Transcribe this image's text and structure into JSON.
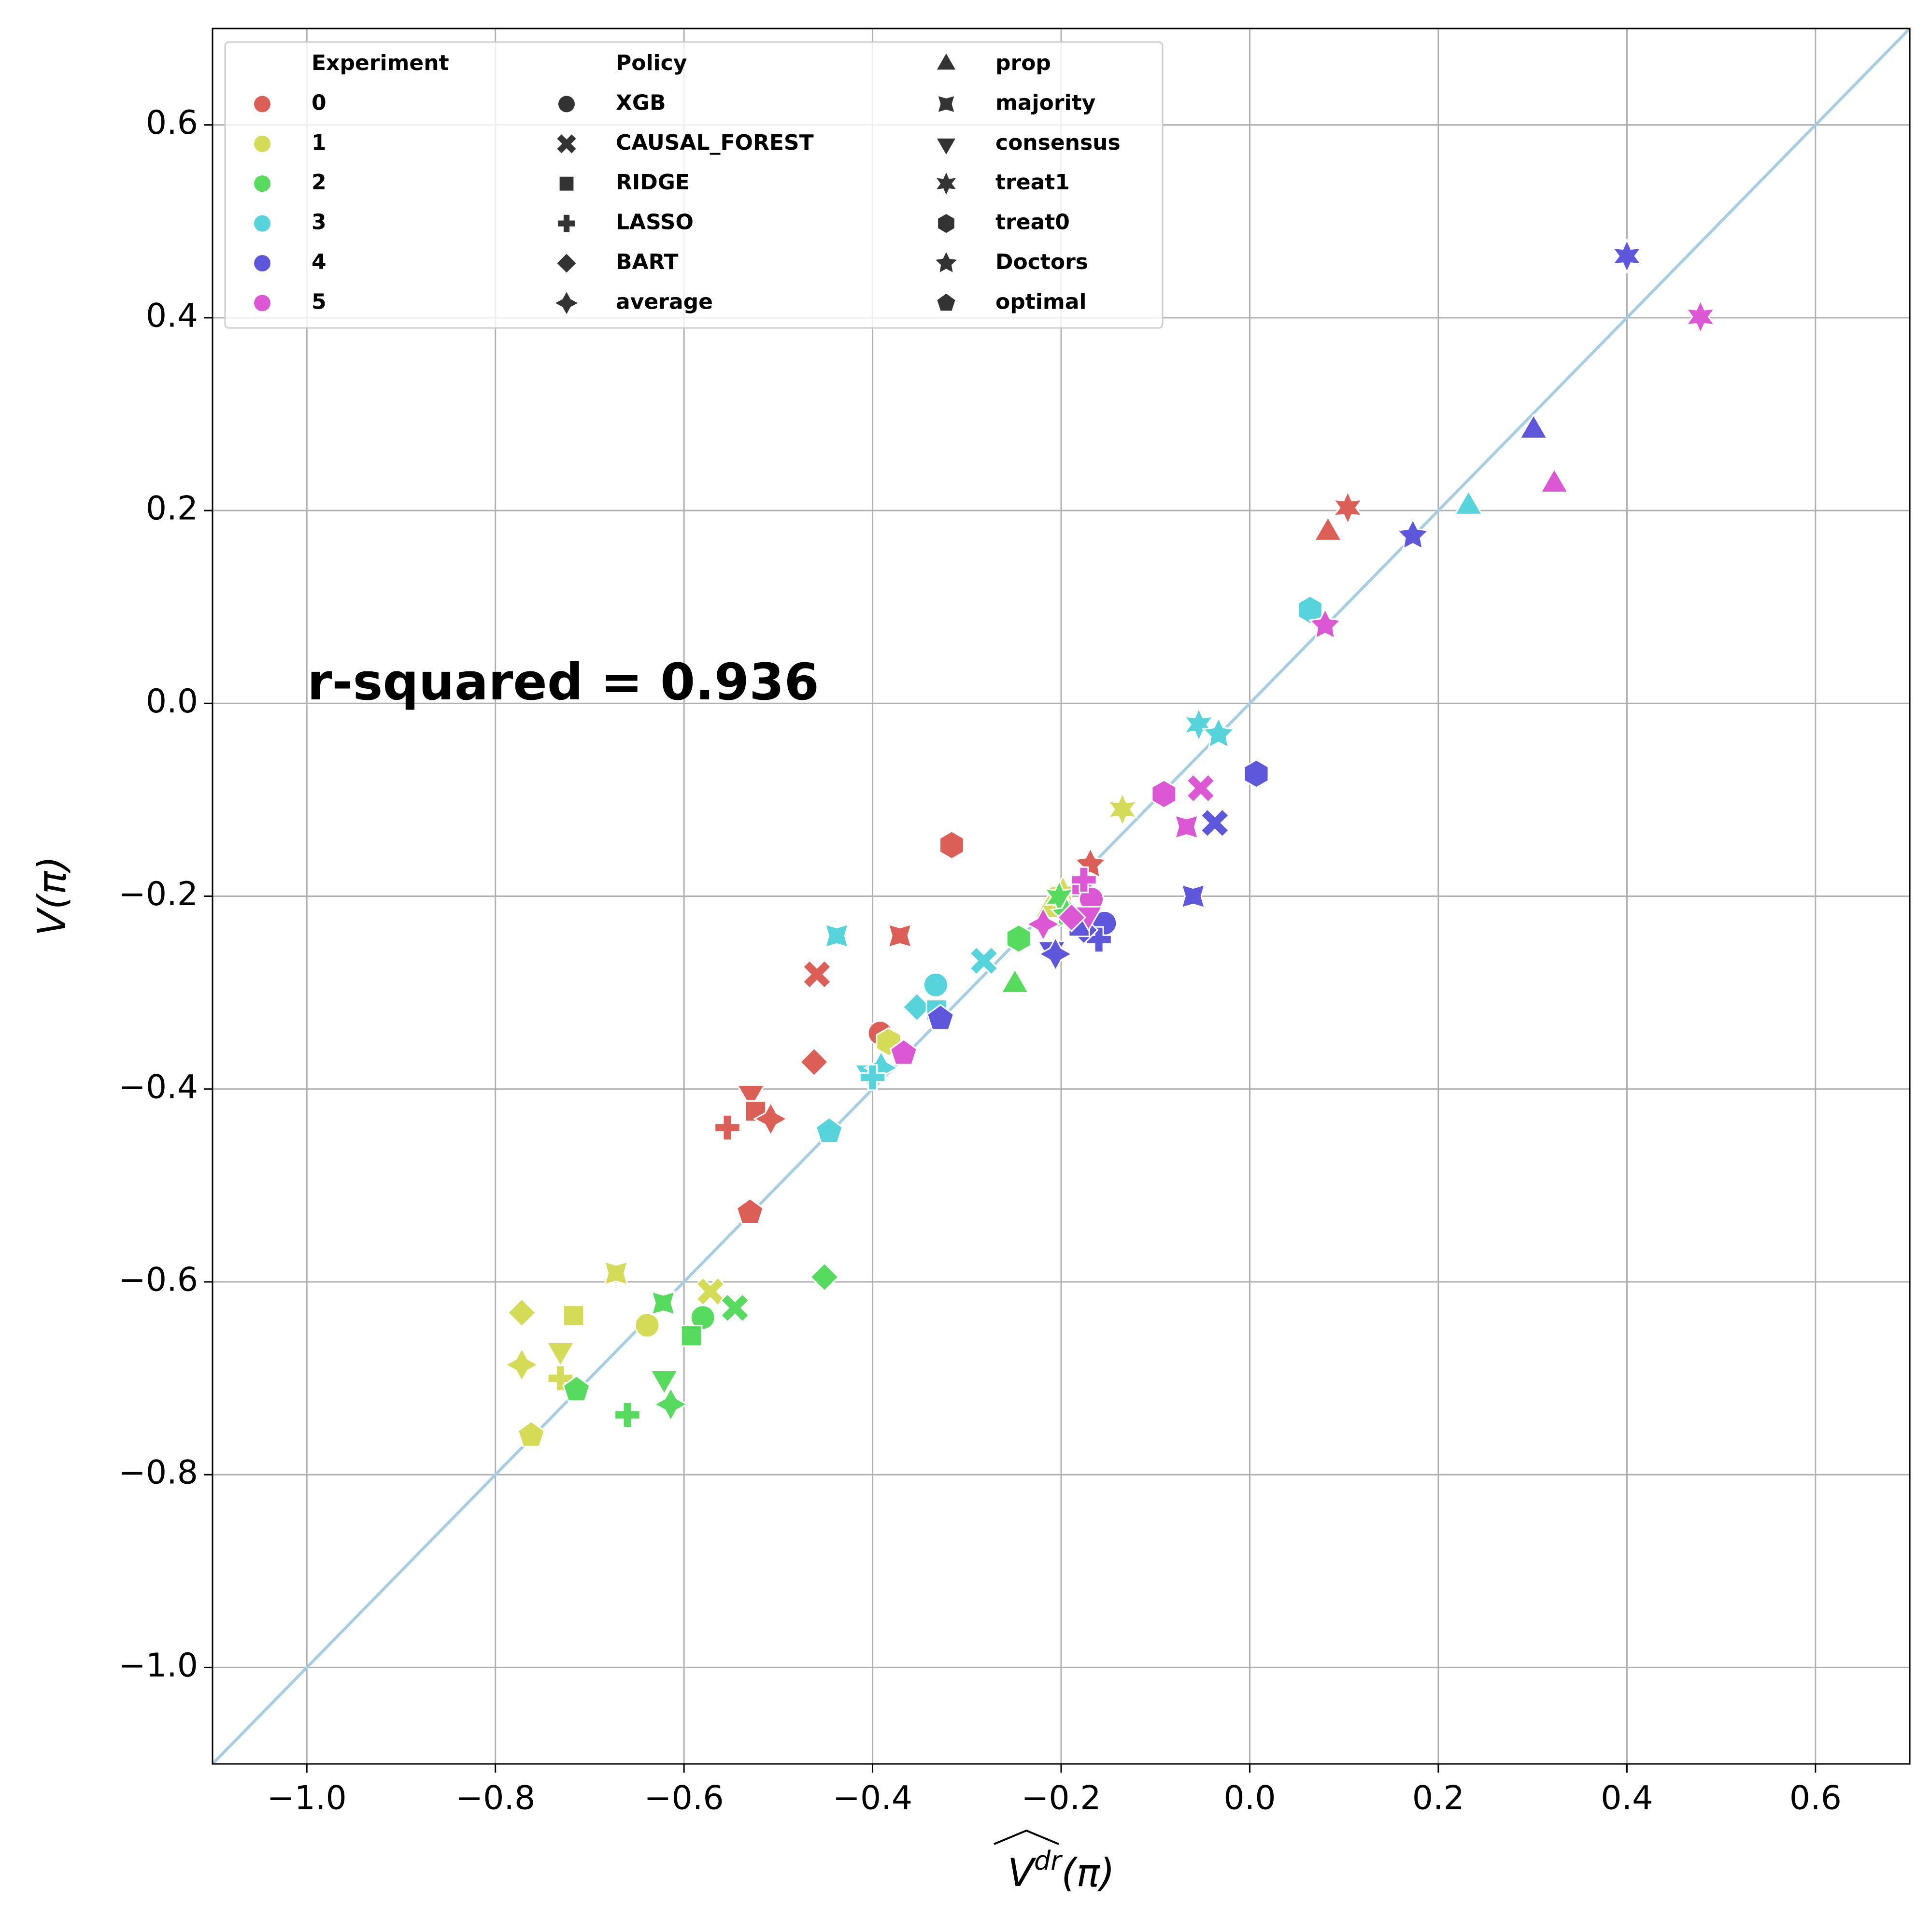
{
  "chart_data": {
    "type": "scatter",
    "xlabel": {
      "base": "V",
      "sup": "dr",
      "arg": "(π)"
    },
    "ylabel": "V(π)",
    "annotation": "r-squared = 0.936",
    "xlim": [
      -1.1,
      0.7
    ],
    "ylim": [
      -1.1,
      0.7
    ],
    "xticks": [
      {
        "value": -1.0,
        "label": "−1.0"
      },
      {
        "value": -0.8,
        "label": "−0.8"
      },
      {
        "value": -0.6,
        "label": "−0.6"
      },
      {
        "value": -0.4,
        "label": "−0.4"
      },
      {
        "value": -0.2,
        "label": "−0.2"
      },
      {
        "value": 0.0,
        "label": "0.0"
      },
      0.2,
      0.4,
      0.6
    ],
    "yticks": [
      {
        "value": -1.0,
        "label": "−1.0"
      },
      {
        "value": -0.8,
        "label": "−0.8"
      },
      {
        "value": -0.6,
        "label": "−0.6"
      },
      {
        "value": -0.4,
        "label": "−0.4"
      },
      {
        "value": -0.2,
        "label": "−0.2"
      },
      {
        "value": 0.0,
        "label": "0.0"
      },
      0.2,
      0.4,
      0.6
    ],
    "grid": true,
    "legend": "upper left",
    "diagonal_color": "#a6cee3",
    "hue_title": "Experiment",
    "style_title": "Policy",
    "policies": [
      {
        "name": "XGB",
        "marker": "o"
      },
      {
        "name": "CAUSAL_FOREST",
        "marker": "X"
      },
      {
        "name": "RIDGE",
        "marker": [
          4,
          0,
          45
        ]
      },
      {
        "name": "LASSO",
        "marker": "P"
      },
      {
        "name": "BART",
        "marker": [
          4,
          0,
          0
        ]
      },
      {
        "name": "average",
        "marker": [
          4,
          1,
          0
        ]
      },
      {
        "name": "prop",
        "marker": [
          3,
          0,
          0
        ]
      },
      {
        "name": "majority",
        "marker": [
          4,
          1,
          45
        ]
      },
      {
        "name": "consensus",
        "marker": [
          3,
          0,
          180
        ]
      },
      {
        "name": "treat1",
        "marker": [
          6,
          1,
          0
        ]
      },
      {
        "name": "treat0",
        "marker": [
          6,
          0,
          0
        ]
      },
      {
        "name": "Doctors",
        "marker": [
          5,
          1,
          0
        ]
      },
      {
        "name": "optimal",
        "marker": [
          5,
          0,
          0
        ]
      }
    ],
    "series": [
      {
        "name": "0",
        "color": "#db5f57",
        "x": [
          0.083,
          0.104,
          -0.316,
          -0.459,
          -0.371,
          -0.169,
          -0.392,
          -0.462,
          -0.529,
          -0.524,
          -0.508,
          -0.554,
          -0.53
        ],
        "y": [
          0.177,
          0.203,
          -0.147,
          -0.281,
          -0.241,
          -0.167,
          -0.342,
          -0.372,
          -0.404,
          -0.423,
          -0.431,
          -0.44,
          -0.528
        ],
        "policy": [
          "prop",
          "treat1",
          "treat0",
          "CAUSAL_FOREST",
          "majority",
          "Doctors",
          "XGB",
          "BART",
          "consensus",
          "RIDGE",
          "average",
          "LASSO",
          "optimal"
        ]
      },
      {
        "name": "1",
        "color": "#d3db57",
        "x": [
          -0.772,
          -0.717,
          -0.731,
          -0.772,
          -0.731,
          -0.762,
          -0.672,
          -0.639,
          -0.572,
          -0.135,
          -0.383,
          -0.213,
          -0.198
        ],
        "y": [
          -0.632,
          -0.635,
          -0.671,
          -0.686,
          -0.7,
          -0.759,
          -0.591,
          -0.645,
          -0.61,
          -0.11,
          -0.351,
          -0.214,
          -0.196
        ],
        "policy": [
          "BART",
          "RIDGE",
          "consensus",
          "average",
          "LASSO",
          "optimal",
          "majority",
          "XGB",
          "CAUSAL_FOREST",
          "treat1",
          "treat0",
          "prop",
          "Doctors"
        ]
      },
      {
        "name": "2",
        "color": "#57db5f",
        "x": [
          -0.249,
          -0.245,
          -0.451,
          -0.546,
          -0.58,
          -0.592,
          -0.622,
          -0.621,
          -0.614,
          -0.66,
          -0.714,
          -0.202,
          -0.194
        ],
        "y": [
          -0.292,
          -0.244,
          -0.595,
          -0.627,
          -0.637,
          -0.656,
          -0.622,
          -0.7,
          -0.727,
          -0.738,
          -0.712,
          -0.201,
          -0.219
        ],
        "policy": [
          "prop",
          "treat0",
          "BART",
          "CAUSAL_FOREST",
          "XGB",
          "RIDGE",
          "majority",
          "consensus",
          "average",
          "LASSO",
          "optimal",
          "treat1",
          "Doctors"
        ]
      },
      {
        "name": "3",
        "color": "#57d3db",
        "x": [
          0.232,
          0.064,
          -0.054,
          -0.033,
          -0.438,
          -0.282,
          -0.333,
          -0.353,
          -0.404,
          -0.391,
          -0.446,
          -0.332,
          -0.4
        ],
        "y": [
          0.204,
          0.097,
          -0.022,
          -0.032,
          -0.241,
          -0.267,
          -0.292,
          -0.315,
          -0.383,
          -0.378,
          -0.444,
          -0.318,
          -0.388
        ],
        "policy": [
          "prop",
          "treat0",
          "treat1",
          "Doctors",
          "majority",
          "CAUSAL_FOREST",
          "XGB",
          "BART",
          "consensus",
          "average",
          "optimal",
          "RIDGE",
          "LASSO"
        ]
      },
      {
        "name": "4",
        "color": "#5f57db",
        "x": [
          0.4,
          0.301,
          0.173,
          0.007,
          -0.037,
          -0.06,
          -0.154,
          -0.16,
          -0.176,
          -0.21,
          -0.206,
          -0.328,
          -0.181
        ],
        "y": [
          0.464,
          0.283,
          0.174,
          -0.073,
          -0.124,
          -0.2,
          -0.228,
          -0.245,
          -0.235,
          -0.255,
          -0.26,
          -0.327,
          -0.231
        ],
        "policy": [
          "treat1",
          "prop",
          "Doctors",
          "treat0",
          "CAUSAL_FOREST",
          "majority",
          "XGB",
          "LASSO",
          "BART",
          "consensus",
          "average",
          "optimal",
          "RIDGE"
        ]
      },
      {
        "name": "5",
        "color": "#db57d3",
        "x": [
          0.478,
          0.323,
          0.08,
          -0.091,
          -0.052,
          -0.067,
          -0.178,
          -0.168,
          -0.171,
          -0.219,
          -0.189,
          -0.367,
          -0.176
        ],
        "y": [
          0.401,
          0.227,
          0.081,
          -0.094,
          -0.088,
          -0.128,
          -0.188,
          -0.203,
          -0.219,
          -0.229,
          -0.222,
          -0.363,
          -0.183
        ],
        "policy": [
          "treat1",
          "prop",
          "Doctors",
          "treat0",
          "CAUSAL_FOREST",
          "majority",
          "RIDGE",
          "XGB",
          "consensus",
          "average",
          "BART",
          "optimal",
          "LASSO"
        ]
      }
    ]
  }
}
